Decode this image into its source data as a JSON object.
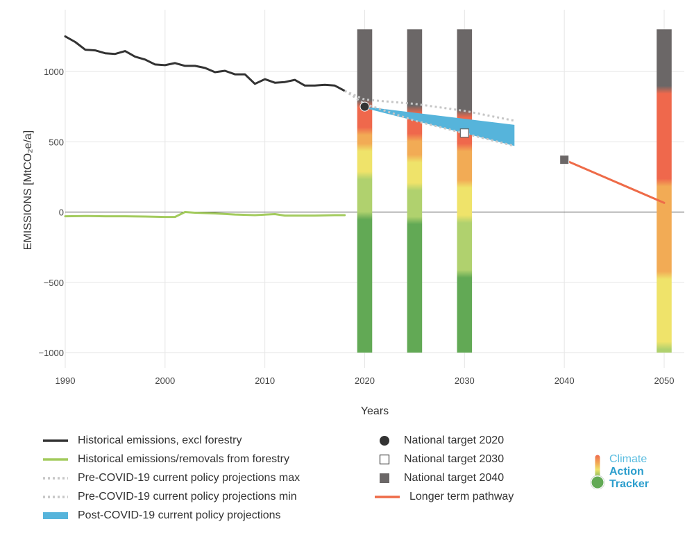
{
  "chart_data": {
    "type": "line",
    "title": "",
    "xlabel": "Years",
    "ylabel": "EMISSIONS [MtCO₂e/a]",
    "xlim": [
      1990,
      2052
    ],
    "ylim": [
      -1000,
      1300
    ],
    "x_ticks": [
      "1990",
      "2000",
      "2010",
      "2020",
      "2030",
      "2040",
      "2050"
    ],
    "y_ticks": [
      {
        "value": 1000,
        "label": "1000"
      },
      {
        "value": 500,
        "label": "500"
      },
      {
        "value": 0,
        "label": "0"
      },
      {
        "value": -500,
        "label": "−500"
      },
      {
        "value": -1000,
        "label": "−1000"
      }
    ],
    "grid": true,
    "zero_line": true,
    "series": [
      {
        "name": "Historical emissions, excl forestry",
        "kind": "line",
        "color": "#333333",
        "x": [
          1990,
          1991,
          1992,
          1993,
          1994,
          1995,
          1996,
          1997,
          1998,
          1999,
          2000,
          2001,
          2002,
          2003,
          2004,
          2005,
          2006,
          2007,
          2008,
          2009,
          2010,
          2011,
          2012,
          2013,
          2014,
          2015,
          2016,
          2017,
          2018
        ],
        "y": [
          1250,
          1210,
          1155,
          1150,
          1130,
          1125,
          1145,
          1105,
          1085,
          1050,
          1045,
          1060,
          1040,
          1040,
          1025,
          995,
          1005,
          980,
          980,
          912,
          945,
          920,
          925,
          940,
          900,
          900,
          905,
          900,
          862
        ]
      },
      {
        "name": "Historical emissions/removals from forestry",
        "kind": "line",
        "color": "#a3cb5d",
        "x": [
          1990,
          1992,
          1994,
          1996,
          1998,
          2000,
          2001,
          2002,
          2003,
          2005,
          2007,
          2009,
          2011,
          2012,
          2013,
          2015,
          2017,
          2018
        ],
        "y": [
          -30,
          -28,
          -30,
          -30,
          -32,
          -35,
          -35,
          0,
          -5,
          -10,
          -18,
          -22,
          -15,
          -25,
          -25,
          -25,
          -22,
          -22
        ]
      },
      {
        "name": "Pre-COVID-19 current policy projections max",
        "kind": "dotted",
        "color": "#c6c6c6",
        "x": [
          2018,
          2020,
          2025,
          2030,
          2035
        ],
        "y": [
          862,
          800,
          770,
          720,
          650
        ]
      },
      {
        "name": "Pre-COVID-19 current policy projections min",
        "kind": "dotted",
        "color": "#c6c6c6",
        "x": [
          2018,
          2020,
          2025,
          2030,
          2035
        ],
        "y": [
          862,
          770,
          650,
          560,
          470
        ]
      },
      {
        "name": "Post-COVID-19 current policy projections",
        "kind": "band",
        "color": "#56b4db",
        "x": [
          2020,
          2035
        ],
        "y_upper": [
          750,
          620
        ],
        "y_lower": [
          740,
          470
        ]
      },
      {
        "name": "National target 2020",
        "kind": "marker",
        "marker": "circle-filled",
        "color": "#333333",
        "x": [
          2020
        ],
        "y": [
          750
        ]
      },
      {
        "name": "National target 2030",
        "kind": "marker",
        "marker": "square-open",
        "color": "#666666",
        "x": [
          2030
        ],
        "y": [
          562
        ]
      },
      {
        "name": "National target 2040",
        "kind": "marker",
        "marker": "square-filled",
        "color": "#6b6767",
        "x": [
          2040
        ],
        "y": [
          372
        ]
      },
      {
        "name": "Longer term pathway",
        "kind": "line",
        "color": "#ee6b48",
        "x": [
          2040,
          2050
        ],
        "y": [
          372,
          65
        ]
      }
    ],
    "rating_bars": {
      "bar_width_years": 1.5,
      "stops": [
        {
          "year": 2020,
          "segments": [
            {
              "from": -1000,
              "to": -25,
              "color": "#62a955"
            },
            {
              "from": -25,
              "to": 260,
              "color": "#b0d16e"
            },
            {
              "from": 260,
              "to": 460,
              "color": "#efe36a"
            },
            {
              "from": 460,
              "to": 575,
              "color": "#f2ab55"
            },
            {
              "from": 575,
              "to": 770,
              "color": "#ef684c"
            },
            {
              "from": 770,
              "to": 1300,
              "color": "#6b6767"
            }
          ]
        },
        {
          "year": 2025,
          "segments": [
            {
              "from": -1000,
              "to": -60,
              "color": "#62a955"
            },
            {
              "from": -60,
              "to": 180,
              "color": "#b0d16e"
            },
            {
              "from": 180,
              "to": 380,
              "color": "#efe36a"
            },
            {
              "from": 380,
              "to": 530,
              "color": "#f2ab55"
            },
            {
              "from": 530,
              "to": 730,
              "color": "#ef684c"
            },
            {
              "from": 730,
              "to": 1300,
              "color": "#6b6767"
            }
          ]
        },
        {
          "year": 2030,
          "segments": [
            {
              "from": -1000,
              "to": -440,
              "color": "#62a955"
            },
            {
              "from": -440,
              "to": -50,
              "color": "#b0d16e"
            },
            {
              "from": -50,
              "to": 200,
              "color": "#efe36a"
            },
            {
              "from": 200,
              "to": 460,
              "color": "#f2ab55"
            },
            {
              "from": 460,
              "to": 700,
              "color": "#ef684c"
            },
            {
              "from": 700,
              "to": 1300,
              "color": "#6b6767"
            }
          ]
        },
        {
          "year": 2050,
          "segments": [
            {
              "from": -1000,
              "to": -950,
              "color": "#b0d16e"
            },
            {
              "from": -950,
              "to": -450,
              "color": "#efe36a"
            },
            {
              "from": -450,
              "to": 210,
              "color": "#f2ab55"
            },
            {
              "from": 210,
              "to": 870,
              "color": "#ef684c"
            },
            {
              "from": 870,
              "to": 1300,
              "color": "#6b6767"
            }
          ]
        }
      ]
    }
  },
  "legend": {
    "items": [
      {
        "label": "Historical emissions, excl forestry",
        "symbol": "line",
        "color": "#333333"
      },
      {
        "label": "Historical emissions/removals from forestry",
        "symbol": "line",
        "color": "#a3cb5d"
      },
      {
        "label": "Pre-COVID-19 current policy projections max",
        "symbol": "dotted",
        "color": "#c6c6c6"
      },
      {
        "label": "Pre-COVID-19 current policy projections min",
        "symbol": "dotted",
        "color": "#c6c6c6"
      },
      {
        "label": "Post-COVID-19 current policy projections",
        "symbol": "band",
        "color": "#56b4db"
      },
      {
        "label": "National target 2020",
        "symbol": "circle-filled",
        "color": "#333333"
      },
      {
        "label": "National target 2030",
        "symbol": "square-open",
        "color": "#444444"
      },
      {
        "label": "National target 2040",
        "symbol": "square-filled",
        "color": "#6b6767"
      },
      {
        "label": "Longer term pathway",
        "symbol": "line",
        "color": "#ee6b48"
      }
    ]
  },
  "logo": {
    "line1": "Climate",
    "line2": "Action",
    "line3": "Tracker",
    "icon": "thermometer-icon"
  }
}
